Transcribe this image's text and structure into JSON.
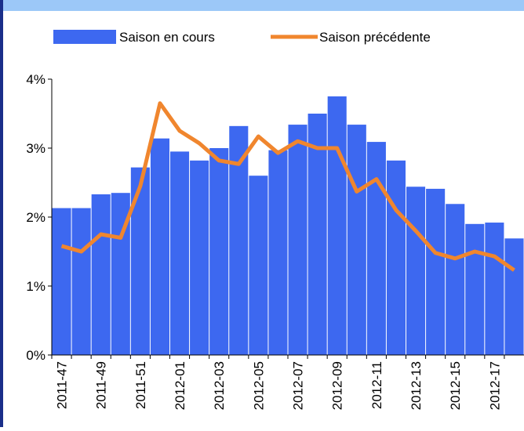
{
  "chart_data": {
    "type": "combo",
    "categories": [
      "2011-47",
      null,
      "2011-49",
      null,
      "2011-51",
      null,
      "2012-01",
      null,
      "2012-03",
      null,
      "2012-05",
      null,
      "2012-07",
      null,
      "2012-09",
      null,
      "2012-11",
      null,
      "2012-13",
      null,
      "2012-15",
      null,
      "2012-17",
      null
    ],
    "series": [
      {
        "name": "Saison en cours",
        "type": "bar",
        "color": "#3d68f0",
        "values": [
          2.13,
          2.13,
          2.33,
          2.35,
          2.72,
          3.14,
          2.95,
          2.82,
          3.0,
          3.32,
          2.6,
          2.97,
          3.34,
          3.5,
          3.75,
          3.34,
          3.09,
          2.82,
          2.44,
          2.41,
          2.19,
          1.9,
          1.92,
          1.69
        ]
      },
      {
        "name": "Saison précédente",
        "type": "line",
        "color": "#f0862e",
        "values": [
          1.58,
          1.5,
          1.75,
          1.7,
          2.45,
          3.65,
          3.25,
          3.07,
          2.82,
          2.77,
          3.17,
          2.93,
          3.1,
          3.0,
          3.0,
          2.37,
          2.55,
          2.1,
          1.8,
          1.48,
          1.4,
          1.5,
          1.43,
          1.23
        ]
      }
    ],
    "ylim": [
      0,
      4
    ],
    "yticks": [
      {
        "value": 0,
        "label": "0%"
      },
      {
        "value": 1,
        "label": "1%"
      },
      {
        "value": 2,
        "label": "2%"
      },
      {
        "value": 3,
        "label": "3%"
      },
      {
        "value": 4,
        "label": "4%"
      }
    ],
    "legend": "top"
  }
}
